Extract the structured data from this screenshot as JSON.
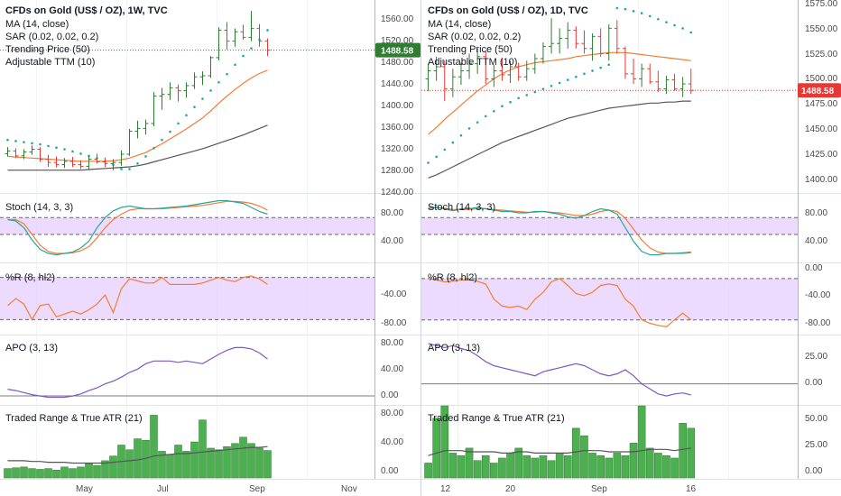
{
  "colors": {
    "up": "#2e7d32",
    "down": "#e53935",
    "ma": "#f57c32",
    "adjustable": "#555555",
    "sar": "#26a69a",
    "stoch_k": "#26a69a",
    "stoch_d": "#f57c32",
    "band": "#e6ccff",
    "wr": "#f57c32",
    "apo": "#7e57c2",
    "range_bar": "#4caf50",
    "atr": "#555555",
    "price_line_weekly": "#2e7d32",
    "price_line_daily": "#e53935",
    "price_tag_weekly": "#2e7d32",
    "price_tag_daily": "#e53935"
  },
  "left": {
    "title": "CFDs on Gold (US$ / OZ), 1W, TVC",
    "legend": [
      "MA (14, close)",
      "SAR (0.02, 0.02, 0.2)",
      "Trending Price (50)",
      "Adjustable TTM (10)"
    ],
    "last_price": "1488.58",
    "price_axis": [
      "1560.00",
      "1520.00",
      "1480.00",
      "1440.00",
      "1400.00",
      "1360.00",
      "1320.00",
      "1280.00",
      "1240.00"
    ],
    "x_labels": [
      "May",
      "Jul",
      "Sep",
      "Nov"
    ],
    "stoch_label": "Stoch (14, 3, 3)",
    "stoch_axis": [
      "80.00",
      "40.00"
    ],
    "wr_label": "%R (8, hl2)",
    "wr_axis": [
      "-40.00",
      "-80.00"
    ],
    "apo_label": "APO (3, 13)",
    "apo_axis": [
      "80.00",
      "40.00",
      "0.00"
    ],
    "tr_label": "Traded Range & True ATR (21)",
    "tr_axis": [
      "80.00",
      "40.00",
      "0.00"
    ]
  },
  "right": {
    "title": "CFDs on Gold (US$ / OZ), 1D, TVC",
    "legend": [
      "MA (14, close)",
      "SAR (0.02, 0.02, 0.2)",
      "Trending Price (50)",
      "Adjustable TTM (10)"
    ],
    "last_price": "1488.58",
    "price_axis": [
      "1575.00",
      "1550.00",
      "1525.00",
      "1500.00",
      "1475.00",
      "1450.00",
      "1425.00",
      "1400.00"
    ],
    "x_labels": [
      "12",
      "20",
      "Sep",
      "16"
    ],
    "stoch_label": "Stoch (14, 3, 3)",
    "stoch_axis": [
      "80.00",
      "40.00"
    ],
    "wr_label": "%R (8, hl2)",
    "wr_axis": [
      "0.00",
      "-40.00",
      "-80.00"
    ],
    "apo_label": "APO (3, 13)",
    "apo_axis": [
      "25.00",
      "0.00"
    ],
    "tr_label": "Traded Range & True ATR (21)",
    "tr_axis": [
      "50.00",
      "25.00",
      "0.00"
    ]
  },
  "chart_data": [
    {
      "type": "candlestick",
      "title": "CFDs on Gold (US$ / OZ), 1W, TVC",
      "ylim": [
        1230,
        1580
      ],
      "x_ticks": [
        "May",
        "Jul",
        "Sep",
        "Nov"
      ],
      "candles": [
        [
          1300,
          1312,
          1295,
          1305
        ],
        [
          1305,
          1310,
          1292,
          1296
        ],
        [
          1296,
          1308,
          1290,
          1303
        ],
        [
          1303,
          1315,
          1298,
          1308
        ],
        [
          1308,
          1312,
          1285,
          1290
        ],
        [
          1290,
          1298,
          1276,
          1284
        ],
        [
          1284,
          1295,
          1275,
          1280
        ],
        [
          1280,
          1292,
          1274,
          1286
        ],
        [
          1286,
          1294,
          1276,
          1280
        ],
        [
          1280,
          1288,
          1272,
          1277
        ],
        [
          1277,
          1296,
          1270,
          1290
        ],
        [
          1290,
          1300,
          1282,
          1285
        ],
        [
          1285,
          1293,
          1276,
          1282
        ],
        [
          1282,
          1290,
          1270,
          1284
        ],
        [
          1284,
          1306,
          1278,
          1299
        ],
        [
          1299,
          1345,
          1296,
          1341
        ],
        [
          1341,
          1360,
          1328,
          1346
        ],
        [
          1346,
          1362,
          1335,
          1355
        ],
        [
          1355,
          1412,
          1350,
          1405
        ],
        [
          1405,
          1420,
          1380,
          1408
        ],
        [
          1408,
          1430,
          1398,
          1420
        ],
        [
          1420,
          1426,
          1395,
          1415
        ],
        [
          1415,
          1430,
          1402,
          1424
        ],
        [
          1424,
          1448,
          1418,
          1440
        ],
        [
          1440,
          1450,
          1425,
          1442
        ],
        [
          1442,
          1478,
          1438,
          1475
        ],
        [
          1475,
          1530,
          1470,
          1525
        ],
        [
          1525,
          1540,
          1490,
          1505
        ],
        [
          1505,
          1528,
          1495,
          1522
        ],
        [
          1522,
          1535,
          1508,
          1512
        ],
        [
          1512,
          1560,
          1505,
          1528
        ],
        [
          1528,
          1536,
          1495,
          1505
        ],
        [
          1505,
          1510,
          1478,
          1488.58
        ]
      ],
      "ma": [
        1295,
        1294,
        1293,
        1292,
        1291,
        1290,
        1289,
        1288,
        1287,
        1286,
        1286,
        1286,
        1286,
        1287,
        1289,
        1292,
        1297,
        1302,
        1310,
        1318,
        1327,
        1336,
        1345,
        1355,
        1365,
        1378,
        1392,
        1405,
        1417,
        1428,
        1438,
        1446,
        1452
      ],
      "adjustable_ttm": [
        1270,
        1270,
        1270,
        1270,
        1270,
        1270,
        1270,
        1270,
        1270,
        1270,
        1271,
        1272,
        1273,
        1274,
        1275,
        1276,
        1278,
        1281,
        1285,
        1289,
        1293,
        1297,
        1301,
        1305,
        1309,
        1314,
        1319,
        1324,
        1329,
        1334,
        1340,
        1346,
        1352
      ],
      "sar": [
        1325,
        1323,
        1321,
        1319,
        1317,
        1314,
        1311,
        1308,
        1304,
        1300,
        1296,
        1292,
        1286,
        1280,
        1272,
        1272,
        1282,
        1295,
        1310,
        1325,
        1340,
        1355,
        1370,
        1385,
        1400,
        1415,
        1430,
        1445,
        1462,
        1478,
        1492,
        1508,
        1525
      ],
      "stoch": {
        "k": [
          62,
          60,
          50,
          32,
          18,
          12,
          10,
          12,
          14,
          20,
          30,
          50,
          65,
          75,
          80,
          82,
          80,
          78,
          78,
          79,
          80,
          81,
          82,
          84,
          86,
          88,
          90,
          90,
          88,
          86,
          80,
          74,
          70
        ],
        "d": [
          62,
          62,
          56,
          40,
          24,
          15,
          12,
          12,
          13,
          16,
          22,
          35,
          50,
          62,
          70,
          76,
          78,
          78,
          78,
          78,
          79,
          80,
          81,
          82,
          83,
          85,
          87,
          89,
          89,
          88,
          86,
          82,
          76
        ],
        "band": [
          40,
          65
        ]
      },
      "williams_r": [
        -60,
        -50,
        -58,
        -80,
        -60,
        -58,
        -76,
        -72,
        -68,
        -72,
        -66,
        -58,
        -45,
        -70,
        -36,
        -22,
        -25,
        -28,
        -28,
        -20,
        -30,
        -30,
        -30,
        -30,
        -28,
        -24,
        -20,
        -24,
        -26,
        -20,
        -18,
        -22,
        -30
      ],
      "apo": [
        10,
        8,
        5,
        2,
        0,
        -2,
        -2,
        -2,
        0,
        3,
        8,
        12,
        18,
        22,
        28,
        35,
        40,
        48,
        52,
        52,
        52,
        50,
        52,
        50,
        48,
        55,
        62,
        68,
        72,
        72,
        70,
        64,
        55
      ],
      "traded_range": [
        12,
        13,
        14,
        12,
        11,
        12,
        10,
        14,
        12,
        14,
        18,
        16,
        22,
        28,
        42,
        36,
        50,
        48,
        80,
        34,
        30,
        42,
        34,
        46,
        74,
        38,
        36,
        40,
        44,
        52,
        44,
        38,
        35
      ],
      "true_atr": [
        22,
        22,
        22,
        21,
        21,
        20,
        20,
        20,
        19,
        19,
        19,
        19,
        19,
        20,
        21,
        22,
        23,
        25,
        28,
        29,
        30,
        31,
        31,
        32,
        33,
        34,
        35,
        36,
        37,
        38,
        39,
        39,
        40
      ]
    },
    {
      "type": "candlestick",
      "title": "CFDs on Gold (US$ / OZ), 1D, TVC",
      "ylim": [
        1388,
        1578
      ],
      "x_ticks": [
        "12",
        "20",
        "Sep",
        "16"
      ],
      "candles": [
        [
          1500,
          1515,
          1488,
          1508
        ],
        [
          1508,
          1522,
          1498,
          1512
        ],
        [
          1512,
          1518,
          1478,
          1490
        ],
        [
          1490,
          1510,
          1482,
          1502
        ],
        [
          1502,
          1516,
          1494,
          1508
        ],
        [
          1508,
          1525,
          1500,
          1515
        ],
        [
          1515,
          1530,
          1505,
          1522
        ],
        [
          1522,
          1528,
          1495,
          1500
        ],
        [
          1500,
          1514,
          1492,
          1508
        ],
        [
          1508,
          1520,
          1498,
          1504
        ],
        [
          1504,
          1518,
          1496,
          1512
        ],
        [
          1512,
          1516,
          1498,
          1502
        ],
        [
          1502,
          1518,
          1498,
          1510
        ],
        [
          1510,
          1525,
          1505,
          1520
        ],
        [
          1520,
          1536,
          1515,
          1532
        ],
        [
          1532,
          1560,
          1525,
          1535
        ],
        [
          1535,
          1550,
          1525,
          1540
        ],
        [
          1540,
          1556,
          1530,
          1548
        ],
        [
          1548,
          1552,
          1530,
          1535
        ],
        [
          1535,
          1548,
          1525,
          1530
        ],
        [
          1530,
          1545,
          1518,
          1542
        ],
        [
          1542,
          1550,
          1522,
          1525
        ],
        [
          1525,
          1554,
          1518,
          1550
        ],
        [
          1550,
          1558,
          1525,
          1530
        ],
        [
          1530,
          1532,
          1500,
          1505
        ],
        [
          1505,
          1520,
          1495,
          1500
        ],
        [
          1500,
          1515,
          1492,
          1510
        ],
        [
          1510,
          1515,
          1495,
          1497
        ],
        [
          1497,
          1508,
          1487,
          1490
        ],
        [
          1490,
          1503,
          1485,
          1499
        ],
        [
          1499,
          1505,
          1488,
          1490
        ],
        [
          1490,
          1502,
          1482,
          1495
        ],
        [
          1495,
          1510,
          1485,
          1488.58
        ]
      ],
      "ma": [
        1445,
        1452,
        1460,
        1467,
        1474,
        1481,
        1488,
        1494,
        1500,
        1505,
        1509,
        1512,
        1514,
        1516,
        1517,
        1518,
        1519,
        1520,
        1522,
        1523,
        1524,
        1525,
        1526,
        1526,
        1526,
        1525,
        1524,
        1523,
        1522,
        1521,
        1520,
        1519,
        1518
      ],
      "adjustable_ttm": [
        1402,
        1405,
        1409,
        1413,
        1417,
        1421,
        1425,
        1429,
        1433,
        1437,
        1440,
        1443,
        1446,
        1449,
        1452,
        1455,
        1458,
        1461,
        1463,
        1465,
        1467,
        1469,
        1471,
        1472,
        1473,
        1474,
        1475,
        1476,
        1476,
        1477,
        1477,
        1478,
        1478
      ],
      "sar": [
        1417,
        1423,
        1430,
        1437,
        1444,
        1451,
        1457,
        1463,
        1468,
        1473,
        1477,
        1481,
        1484,
        1487,
        1490,
        1493,
        1496,
        1499,
        1502,
        1505,
        1508,
        1511,
        1514,
        1570,
        1569,
        1567,
        1565,
        1562,
        1559,
        1556,
        1553,
        1550,
        1546
      ],
      "stoch": {
        "k": [
          78,
          80,
          78,
          75,
          78,
          78,
          80,
          78,
          76,
          74,
          74,
          72,
          72,
          74,
          74,
          72,
          70,
          66,
          64,
          68,
          74,
          78,
          76,
          70,
          50,
          30,
          15,
          10,
          10,
          12,
          12,
          13,
          14
        ],
        "d": [
          80,
          80,
          79,
          77,
          77,
          77,
          78,
          78,
          77,
          76,
          75,
          74,
          73,
          73,
          74,
          73,
          72,
          70,
          68,
          68,
          70,
          74,
          76,
          74,
          64,
          48,
          32,
          20,
          14,
          12,
          12,
          12,
          13
        ],
        "band": [
          40,
          65
        ]
      },
      "williams_r": [
        -20,
        -22,
        -25,
        -24,
        -22,
        -22,
        -24,
        -28,
        -50,
        -60,
        -62,
        -60,
        -65,
        -50,
        -40,
        -25,
        -20,
        -30,
        -42,
        -45,
        -40,
        -30,
        -28,
        -30,
        -50,
        -60,
        -80,
        -85,
        -88,
        -90,
        -80,
        -70,
        -80
      ],
      "apo": [
        40,
        38,
        36,
        38,
        35,
        33,
        28,
        22,
        18,
        16,
        14,
        12,
        10,
        8,
        12,
        14,
        16,
        18,
        20,
        18,
        14,
        10,
        8,
        10,
        14,
        8,
        0,
        -5,
        -10,
        -12,
        -10,
        -9,
        -11
      ],
      "traded_range": [
        12,
        48,
        58,
        20,
        18,
        24,
        14,
        18,
        12,
        16,
        20,
        24,
        18,
        16,
        18,
        14,
        20,
        18,
        40,
        34,
        20,
        18,
        16,
        20,
        18,
        28,
        58,
        24,
        20,
        18,
        16,
        44,
        40
      ],
      "true_atr": [
        18,
        20,
        22,
        22,
        22,
        21,
        21,
        21,
        21,
        20,
        20,
        21,
        21,
        20,
        20,
        20,
        20,
        20,
        21,
        22,
        22,
        22,
        21,
        21,
        21,
        21,
        22,
        23,
        23,
        23,
        22,
        23,
        24
      ]
    }
  ]
}
